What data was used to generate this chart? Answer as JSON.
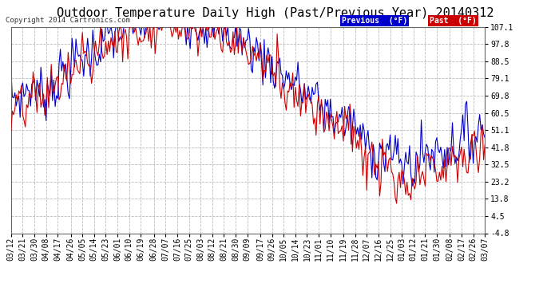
{
  "title": "Outdoor Temperature Daily High (Past/Previous Year) 20140312",
  "copyright": "Copyright 2014 Cartronics.com",
  "ylabel_values": [
    107.1,
    97.8,
    88.5,
    79.1,
    69.8,
    60.5,
    51.1,
    41.8,
    32.5,
    23.2,
    13.8,
    4.5,
    -4.8
  ],
  "ylim": [
    -4.8,
    107.1
  ],
  "x_labels": [
    "03/12",
    "03/21",
    "03/30",
    "04/08",
    "04/17",
    "04/26",
    "05/05",
    "05/14",
    "05/23",
    "06/01",
    "06/10",
    "06/19",
    "06/28",
    "07/07",
    "07/16",
    "07/25",
    "08/03",
    "08/12",
    "08/21",
    "08/30",
    "09/09",
    "09/17",
    "09/26",
    "10/05",
    "10/14",
    "10/23",
    "11/01",
    "11/10",
    "11/19",
    "11/28",
    "12/07",
    "12/16",
    "12/25",
    "01/03",
    "01/12",
    "01/21",
    "01/30",
    "02/08",
    "02/17",
    "02/26",
    "03/07"
  ],
  "legend_previous_label": "Previous  (°F)",
  "legend_past_label": "Past  (°F)",
  "line_width": 0.8,
  "background_color": "#ffffff",
  "grid_color": "#bbbbbb",
  "title_fontsize": 11,
  "tick_fontsize": 7,
  "previous_color": "#0000cc",
  "past_color": "#cc0000"
}
